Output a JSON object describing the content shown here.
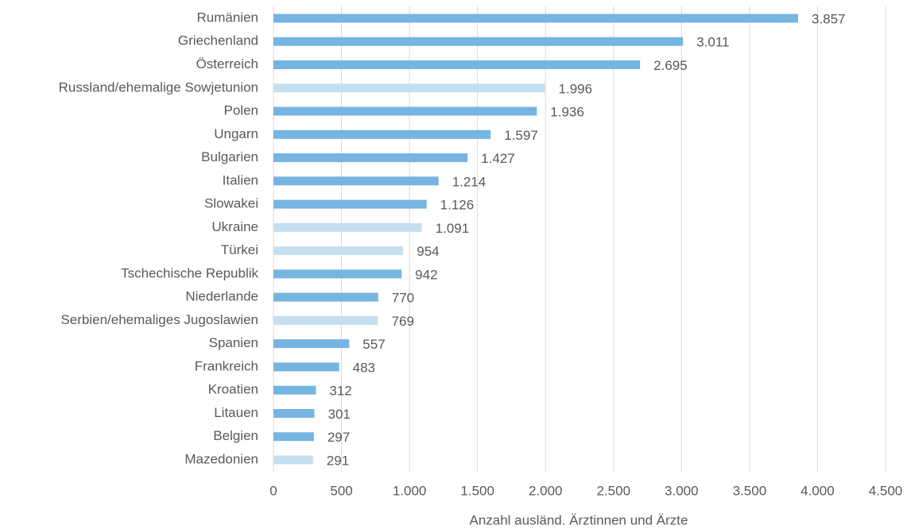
{
  "chart_data": {
    "type": "hbar",
    "categories": [
      "Rumänien",
      "Griechenland",
      "Österreich",
      "Russland/ehemalige Sowjetunion",
      "Polen",
      "Ungarn",
      "Bulgarien",
      "Italien",
      "Slowakei",
      "Ukraine",
      "Türkei",
      "Tschechische Republik",
      "Niederlande",
      "Serbien/ehemaliges Jugoslawien",
      "Spanien",
      "Frankreich",
      "Kroatien",
      "Litauen",
      "Belgien",
      "Mazedonien"
    ],
    "values": [
      3857,
      3011,
      2695,
      1996,
      1936,
      1597,
      1427,
      1214,
      1126,
      1091,
      954,
      942,
      770,
      769,
      557,
      483,
      312,
      301,
      297,
      291
    ],
    "value_labels": [
      "3.857",
      "3.011",
      "2.695",
      "1.996",
      "1.936",
      "1.597",
      "1.427",
      "1.214",
      "1.126",
      "1.091",
      "954",
      "942",
      "770",
      "769",
      "557",
      "483",
      "312",
      "301",
      "297",
      "291"
    ],
    "colors": [
      "#76b4e1",
      "#76b4e1",
      "#76b4e1",
      "#c6dff0",
      "#76b4e1",
      "#76b4e1",
      "#76b4e1",
      "#76b4e1",
      "#76b4e1",
      "#c6dff0",
      "#c6dff0",
      "#76b4e1",
      "#76b4e1",
      "#c6dff0",
      "#76b4e1",
      "#76b4e1",
      "#76b4e1",
      "#76b4e1",
      "#76b4e1",
      "#c6dff0"
    ],
    "xlabel": "Anzahl ausländ. Ärztinnen und Ärzte",
    "xlim": [
      0,
      4500
    ],
    "xticks": [
      0,
      500,
      {
        "value": 1000,
        "label": "1.000"
      },
      {
        "value": 1500,
        "label": "1.500"
      },
      {
        "value": 2000,
        "label": "2.000"
      },
      {
        "value": 2500,
        "label": "2.500"
      },
      {
        "value": 3000,
        "label": "3.000"
      },
      {
        "value": 3500,
        "label": "3.500"
      },
      {
        "value": 4000,
        "label": "4.000"
      },
      {
        "value": 4500,
        "label": "4.500"
      }
    ],
    "grid": true
  }
}
